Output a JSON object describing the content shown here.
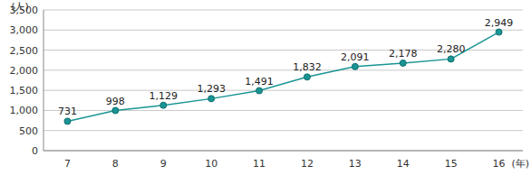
{
  "chart_data": {
    "type": "line",
    "y_label": "(人)",
    "x_label": "(年)",
    "categories": [
      "7",
      "8",
      "9",
      "10",
      "11",
      "12",
      "13",
      "14",
      "15",
      "16"
    ],
    "values": [
      731,
      998,
      1129,
      1293,
      1491,
      1832,
      2091,
      2178,
      2280,
      2949
    ],
    "value_labels": [
      "731",
      "998",
      "1,129",
      "1,293",
      "1,491",
      "1,832",
      "2,091",
      "2,178",
      "2,280",
      "2,949"
    ],
    "color": "#1a9494",
    "marker": "circle",
    "line_style": "solid",
    "ylim": [
      0,
      3500
    ],
    "yticks": [
      0,
      500,
      {
        "value": 1000,
        "label": "1,000"
      },
      {
        "value": 1500,
        "label": "1,500"
      },
      {
        "value": 2000,
        "label": "2,000"
      },
      {
        "value": 2500,
        "label": "2,500"
      },
      {
        "value": 3000,
        "label": "3,000"
      },
      {
        "value": 3500,
        "label": "3,500"
      }
    ],
    "grid": true,
    "data_labels": true
  }
}
